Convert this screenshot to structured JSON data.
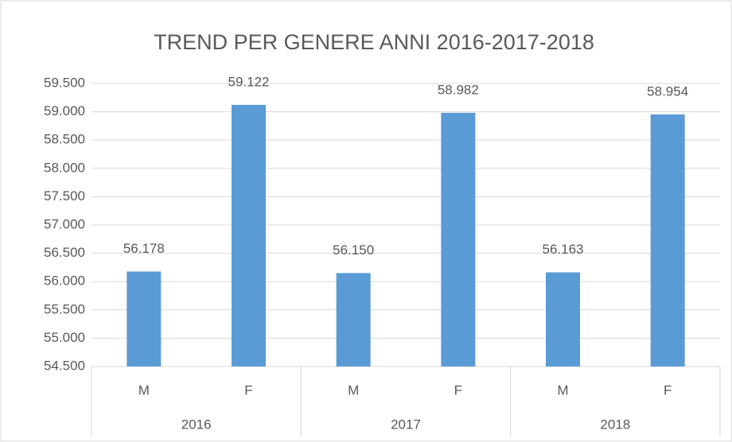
{
  "chart_data": {
    "type": "bar",
    "title": "TREND PER GENERE ANNI 2016-2017-2018",
    "categories": [
      "M",
      "F",
      "M",
      "F",
      "M",
      "F"
    ],
    "groups": [
      "2016",
      "2017",
      "2018"
    ],
    "values": [
      56178,
      59122,
      56150,
      58982,
      56163,
      58954
    ],
    "value_labels": [
      "56.178",
      "59.122",
      "56.150",
      "58.982",
      "56.163",
      "58.954"
    ],
    "color": "#5b9bd5",
    "ylim": [
      54500,
      59500
    ],
    "yticks": [
      {
        "value": 54500,
        "label": "54.500"
      },
      {
        "value": 55000,
        "label": "55.000"
      },
      {
        "value": 55500,
        "label": "55.500"
      },
      {
        "value": 56000,
        "label": "56.000"
      },
      {
        "value": 56500,
        "label": "56.500"
      },
      {
        "value": 57000,
        "label": "57.000"
      },
      {
        "value": 57500,
        "label": "57.500"
      },
      {
        "value": 58000,
        "label": "58.000"
      },
      {
        "value": 58500,
        "label": "58.500"
      },
      {
        "value": 59000,
        "label": "59.000"
      },
      {
        "value": 59500,
        "label": "59.500"
      }
    ],
    "grid": true
  }
}
